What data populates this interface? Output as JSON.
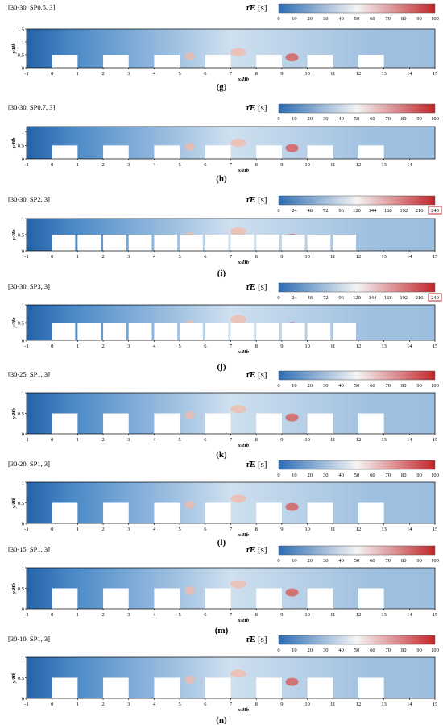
{
  "colorbar_title": {
    "symbol": "τ̄E",
    "unit": "[s]"
  },
  "colors": {
    "low": "#2c6db4",
    "mid": "#f4f4f4",
    "high": "#c3252a",
    "highlight_box": "#c3252a"
  },
  "chart_data": [
    {
      "type": "heatmap",
      "title": "[30-30, SP0.5, 3]",
      "label": "(g)",
      "xlabel": "x/Hb",
      "ylabel": "y/Hb",
      "xlim": [
        -1,
        15
      ],
      "ylim": [
        0,
        1.5
      ],
      "xticks": [
        "-1",
        "0",
        "1",
        "2",
        "3",
        "4",
        "5",
        "6",
        "7",
        "8",
        "9",
        "10",
        "11",
        "12",
        "13",
        "14",
        "15"
      ],
      "yticks": [
        "0",
        "0.5",
        "1",
        "1.5"
      ],
      "colorbar": {
        "min": 0,
        "max": 100,
        "ticks": [
          "0",
          "10",
          "20",
          "30",
          "40",
          "50",
          "60",
          "70",
          "80",
          "90",
          "100"
        ],
        "boxed_tick": ""
      }
    },
    {
      "type": "heatmap",
      "title": "[30-30, SP0.7, 3]",
      "label": "(h)",
      "xlabel": "x/Hb",
      "ylabel": "y/Hb",
      "xlim": [
        -1,
        15
      ],
      "ylim": [
        0,
        1.2
      ],
      "xticks": [
        "-1",
        "0",
        "1",
        "2",
        "3",
        "4",
        "5",
        "6",
        "7",
        "8",
        "9",
        "10",
        "11",
        "12",
        "13",
        "14"
      ],
      "yticks": [
        "0",
        "0.5",
        "1"
      ],
      "colorbar": {
        "min": 0,
        "max": 100,
        "ticks": [
          "0",
          "10",
          "20",
          "30",
          "40",
          "50",
          "60",
          "70",
          "80",
          "90",
          "100"
        ],
        "boxed_tick": ""
      }
    },
    {
      "type": "heatmap",
      "title": "[30-30, SP2, 3]",
      "label": "(i)",
      "xlabel": "x/Hb",
      "ylabel": "y/Hb",
      "xlim": [
        -1,
        15
      ],
      "ylim": [
        0,
        1
      ],
      "xticks": [
        "-1",
        "0",
        "1",
        "2",
        "3",
        "4",
        "5",
        "6",
        "7",
        "8",
        "9",
        "10",
        "11",
        "12",
        "13",
        "14",
        "15"
      ],
      "yticks": [
        "0",
        "0.5",
        "1"
      ],
      "colorbar": {
        "min": 0,
        "max": 240,
        "ticks": [
          "0",
          "24",
          "48",
          "72",
          "96",
          "120",
          "144",
          "168",
          "192",
          "216",
          "240"
        ],
        "boxed_tick": "240"
      }
    },
    {
      "type": "heatmap",
      "title": "[30-30, SP3, 3]",
      "label": "(j)",
      "xlabel": "x/Hb",
      "ylabel": "y/Hb",
      "xlim": [
        -1,
        15
      ],
      "ylim": [
        0,
        1
      ],
      "xticks": [
        "-1",
        "0",
        "1",
        "2",
        "3",
        "4",
        "5",
        "6",
        "7",
        "8",
        "9",
        "10",
        "11",
        "12",
        "13",
        "14",
        "15"
      ],
      "yticks": [
        "0",
        "0.5",
        "1"
      ],
      "colorbar": {
        "min": 0,
        "max": 240,
        "ticks": [
          "0",
          "24",
          "48",
          "72",
          "96",
          "120",
          "144",
          "168",
          "192",
          "216",
          "240"
        ],
        "boxed_tick": "240"
      }
    },
    {
      "type": "heatmap",
      "title": "[30-25, SP1, 3]",
      "label": "(k)",
      "xlabel": "x/Hb",
      "ylabel": "y/Hb",
      "xlim": [
        -1,
        15
      ],
      "ylim": [
        0,
        1
      ],
      "xticks": [
        "-1",
        "0",
        "1",
        "2",
        "3",
        "4",
        "5",
        "6",
        "7",
        "8",
        "9",
        "10",
        "11",
        "12",
        "13",
        "14",
        "15"
      ],
      "yticks": [
        "0",
        "0.5",
        "1"
      ],
      "colorbar": {
        "min": 0,
        "max": 100,
        "ticks": [
          "0",
          "10",
          "20",
          "30",
          "40",
          "50",
          "60",
          "70",
          "80",
          "90",
          "100"
        ],
        "boxed_tick": ""
      }
    },
    {
      "type": "heatmap",
      "title": "[30-20, SP1, 3]",
      "label": "(l)",
      "xlabel": "x/Hb",
      "ylabel": "y/Hb",
      "xlim": [
        -1,
        15
      ],
      "ylim": [
        0,
        1
      ],
      "xticks": [
        "-1",
        "0",
        "1",
        "2",
        "3",
        "4",
        "5",
        "6",
        "7",
        "8",
        "9",
        "10",
        "11",
        "12",
        "13",
        "14",
        "15"
      ],
      "yticks": [
        "0",
        "0.5",
        "1"
      ],
      "colorbar": {
        "min": 0,
        "max": 100,
        "ticks": [
          "0",
          "10",
          "20",
          "30",
          "40",
          "50",
          "60",
          "70",
          "80",
          "90",
          "100"
        ],
        "boxed_tick": ""
      }
    },
    {
      "type": "heatmap",
      "title": "[30-15, SP1, 3]",
      "label": "(m)",
      "xlabel": "x/Hb",
      "ylabel": "y/Hb",
      "xlim": [
        -1,
        15
      ],
      "ylim": [
        0,
        1
      ],
      "xticks": [
        "-1",
        "0",
        "1",
        "2",
        "3",
        "4",
        "5",
        "6",
        "7",
        "8",
        "9",
        "10",
        "11",
        "12",
        "13",
        "14",
        "15"
      ],
      "yticks": [
        "0",
        "0.5",
        "1"
      ],
      "colorbar": {
        "min": 0,
        "max": 100,
        "ticks": [
          "0",
          "10",
          "20",
          "30",
          "40",
          "50",
          "60",
          "70",
          "80",
          "90",
          "100"
        ],
        "boxed_tick": ""
      }
    },
    {
      "type": "heatmap",
      "title": "[30-10, SP1, 3]",
      "label": "(n)",
      "xlabel": "x/Hb",
      "ylabel": "y/Hb",
      "xlim": [
        -1,
        15
      ],
      "ylim": [
        0,
        1
      ],
      "xticks": [
        "-1",
        "0",
        "1",
        "2",
        "3",
        "4",
        "5",
        "6",
        "7",
        "8",
        "9",
        "10",
        "11",
        "12",
        "13",
        "14",
        "15"
      ],
      "yticks": [
        "0",
        "0.5",
        "1"
      ],
      "colorbar": {
        "min": 0,
        "max": 100,
        "ticks": [
          "0",
          "10",
          "20",
          "30",
          "40",
          "50",
          "60",
          "70",
          "80",
          "90",
          "100"
        ],
        "boxed_tick": ""
      }
    }
  ]
}
